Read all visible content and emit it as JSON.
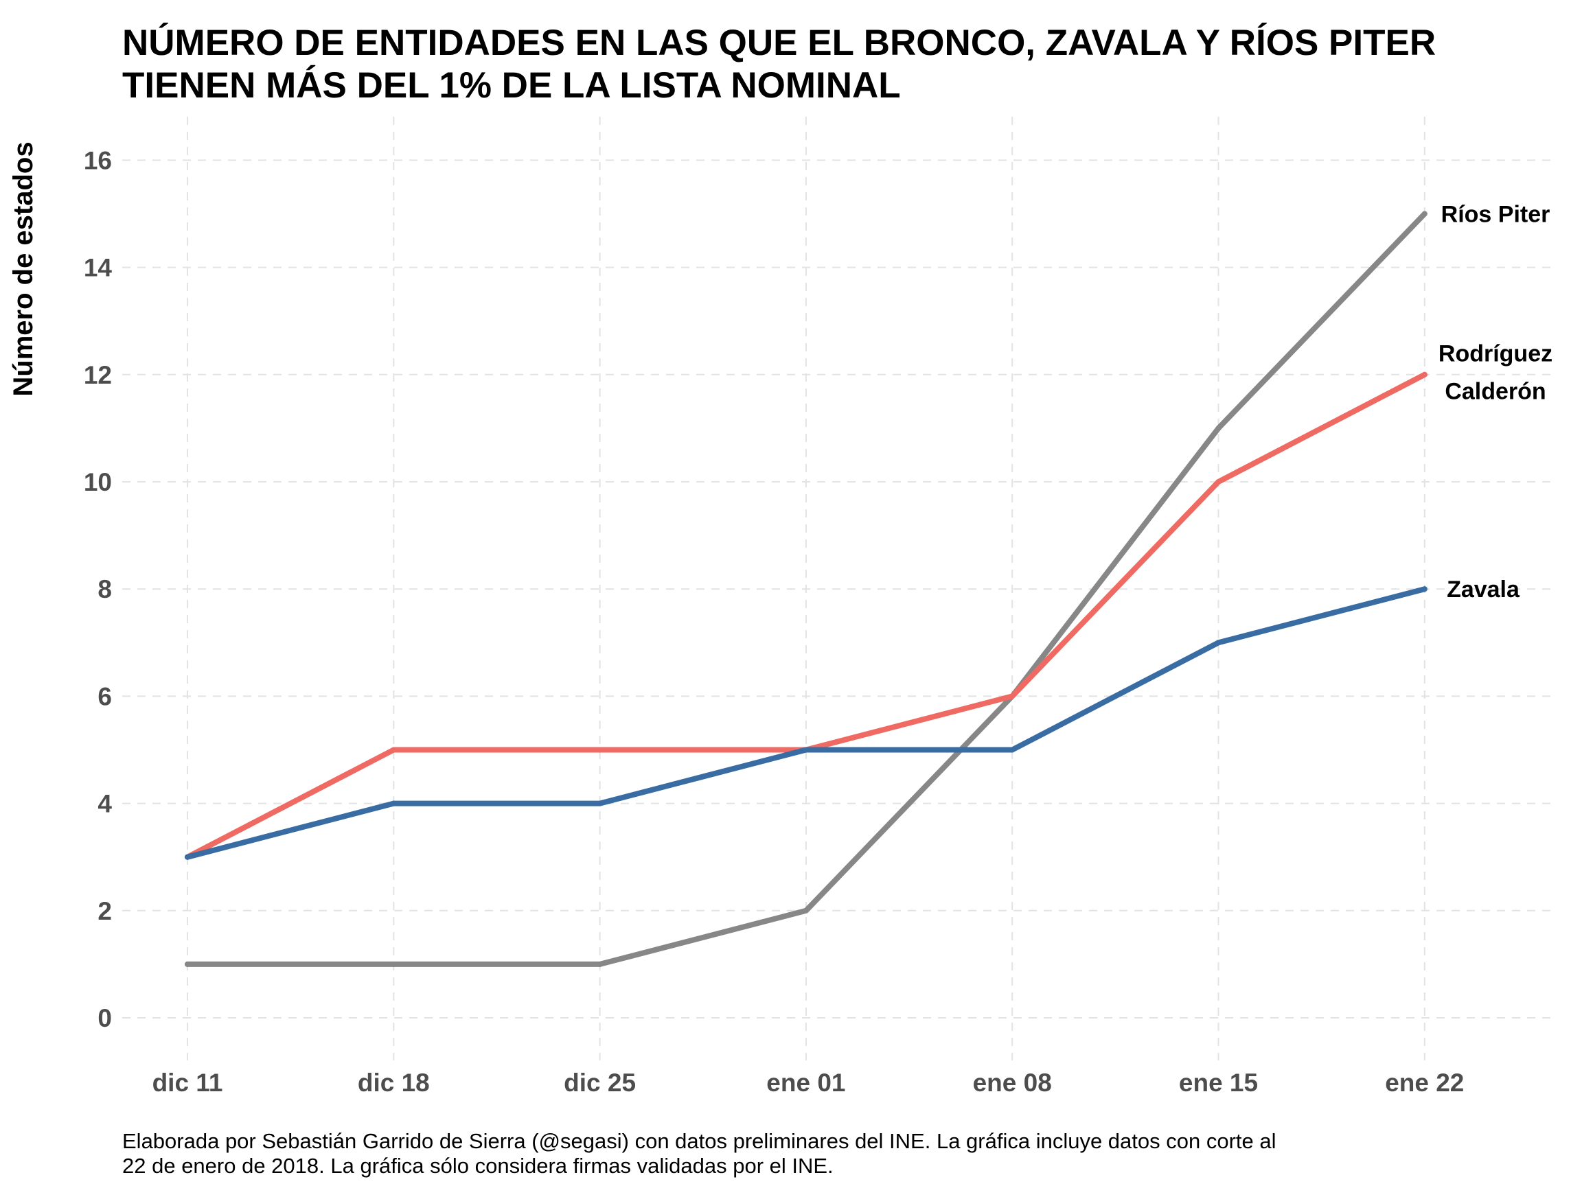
{
  "title_lines": [
    "NÚMERO DE ENTIDADES EN LAS QUE EL BRONCO, ZAVALA Y RÍOS PITER",
    "TIENEN MÁS DEL 1% DE LA LISTA NOMINAL"
  ],
  "caption_lines": [
    "Elaborada por Sebastián Garrido de Sierra (@segasi) con datos preliminares del INE. La gráfica incluye datos con corte al",
    "22 de enero de 2018. La gráfica sólo considera firmas validadas por el INE."
  ],
  "chart_data": {
    "type": "line",
    "title": "NÚMERO DE ENTIDADES EN LAS QUE EL BRONCO, ZAVALA Y RÍOS PITER TIENEN MÁS DEL 1% DE LA LISTA NOMINAL",
    "xlabel": "",
    "ylabel": "Número de estados",
    "categories": [
      "dic 11",
      "dic 18",
      "dic 25",
      "ene 01",
      "ene 08",
      "ene 15",
      "ene 22"
    ],
    "ylim": [
      0,
      16
    ],
    "yticks": [
      "0",
      "2",
      "4",
      "6",
      "8",
      "10",
      "12",
      "14",
      "16"
    ],
    "grid": true,
    "series": [
      {
        "label_lines": [
          "Ríos Piter"
        ],
        "color": "#878787",
        "values": [
          1,
          1,
          1,
          2,
          6,
          11,
          15
        ]
      },
      {
        "label_lines": [
          "Rodríguez",
          "Calderón"
        ],
        "color": "#ef6a62",
        "values": [
          3,
          5,
          5,
          5,
          6,
          10,
          12
        ]
      },
      {
        "label_lines": [
          "Zavala"
        ],
        "color": "#386ca2",
        "values": [
          3,
          4,
          4,
          5,
          5,
          7,
          8
        ]
      }
    ]
  }
}
